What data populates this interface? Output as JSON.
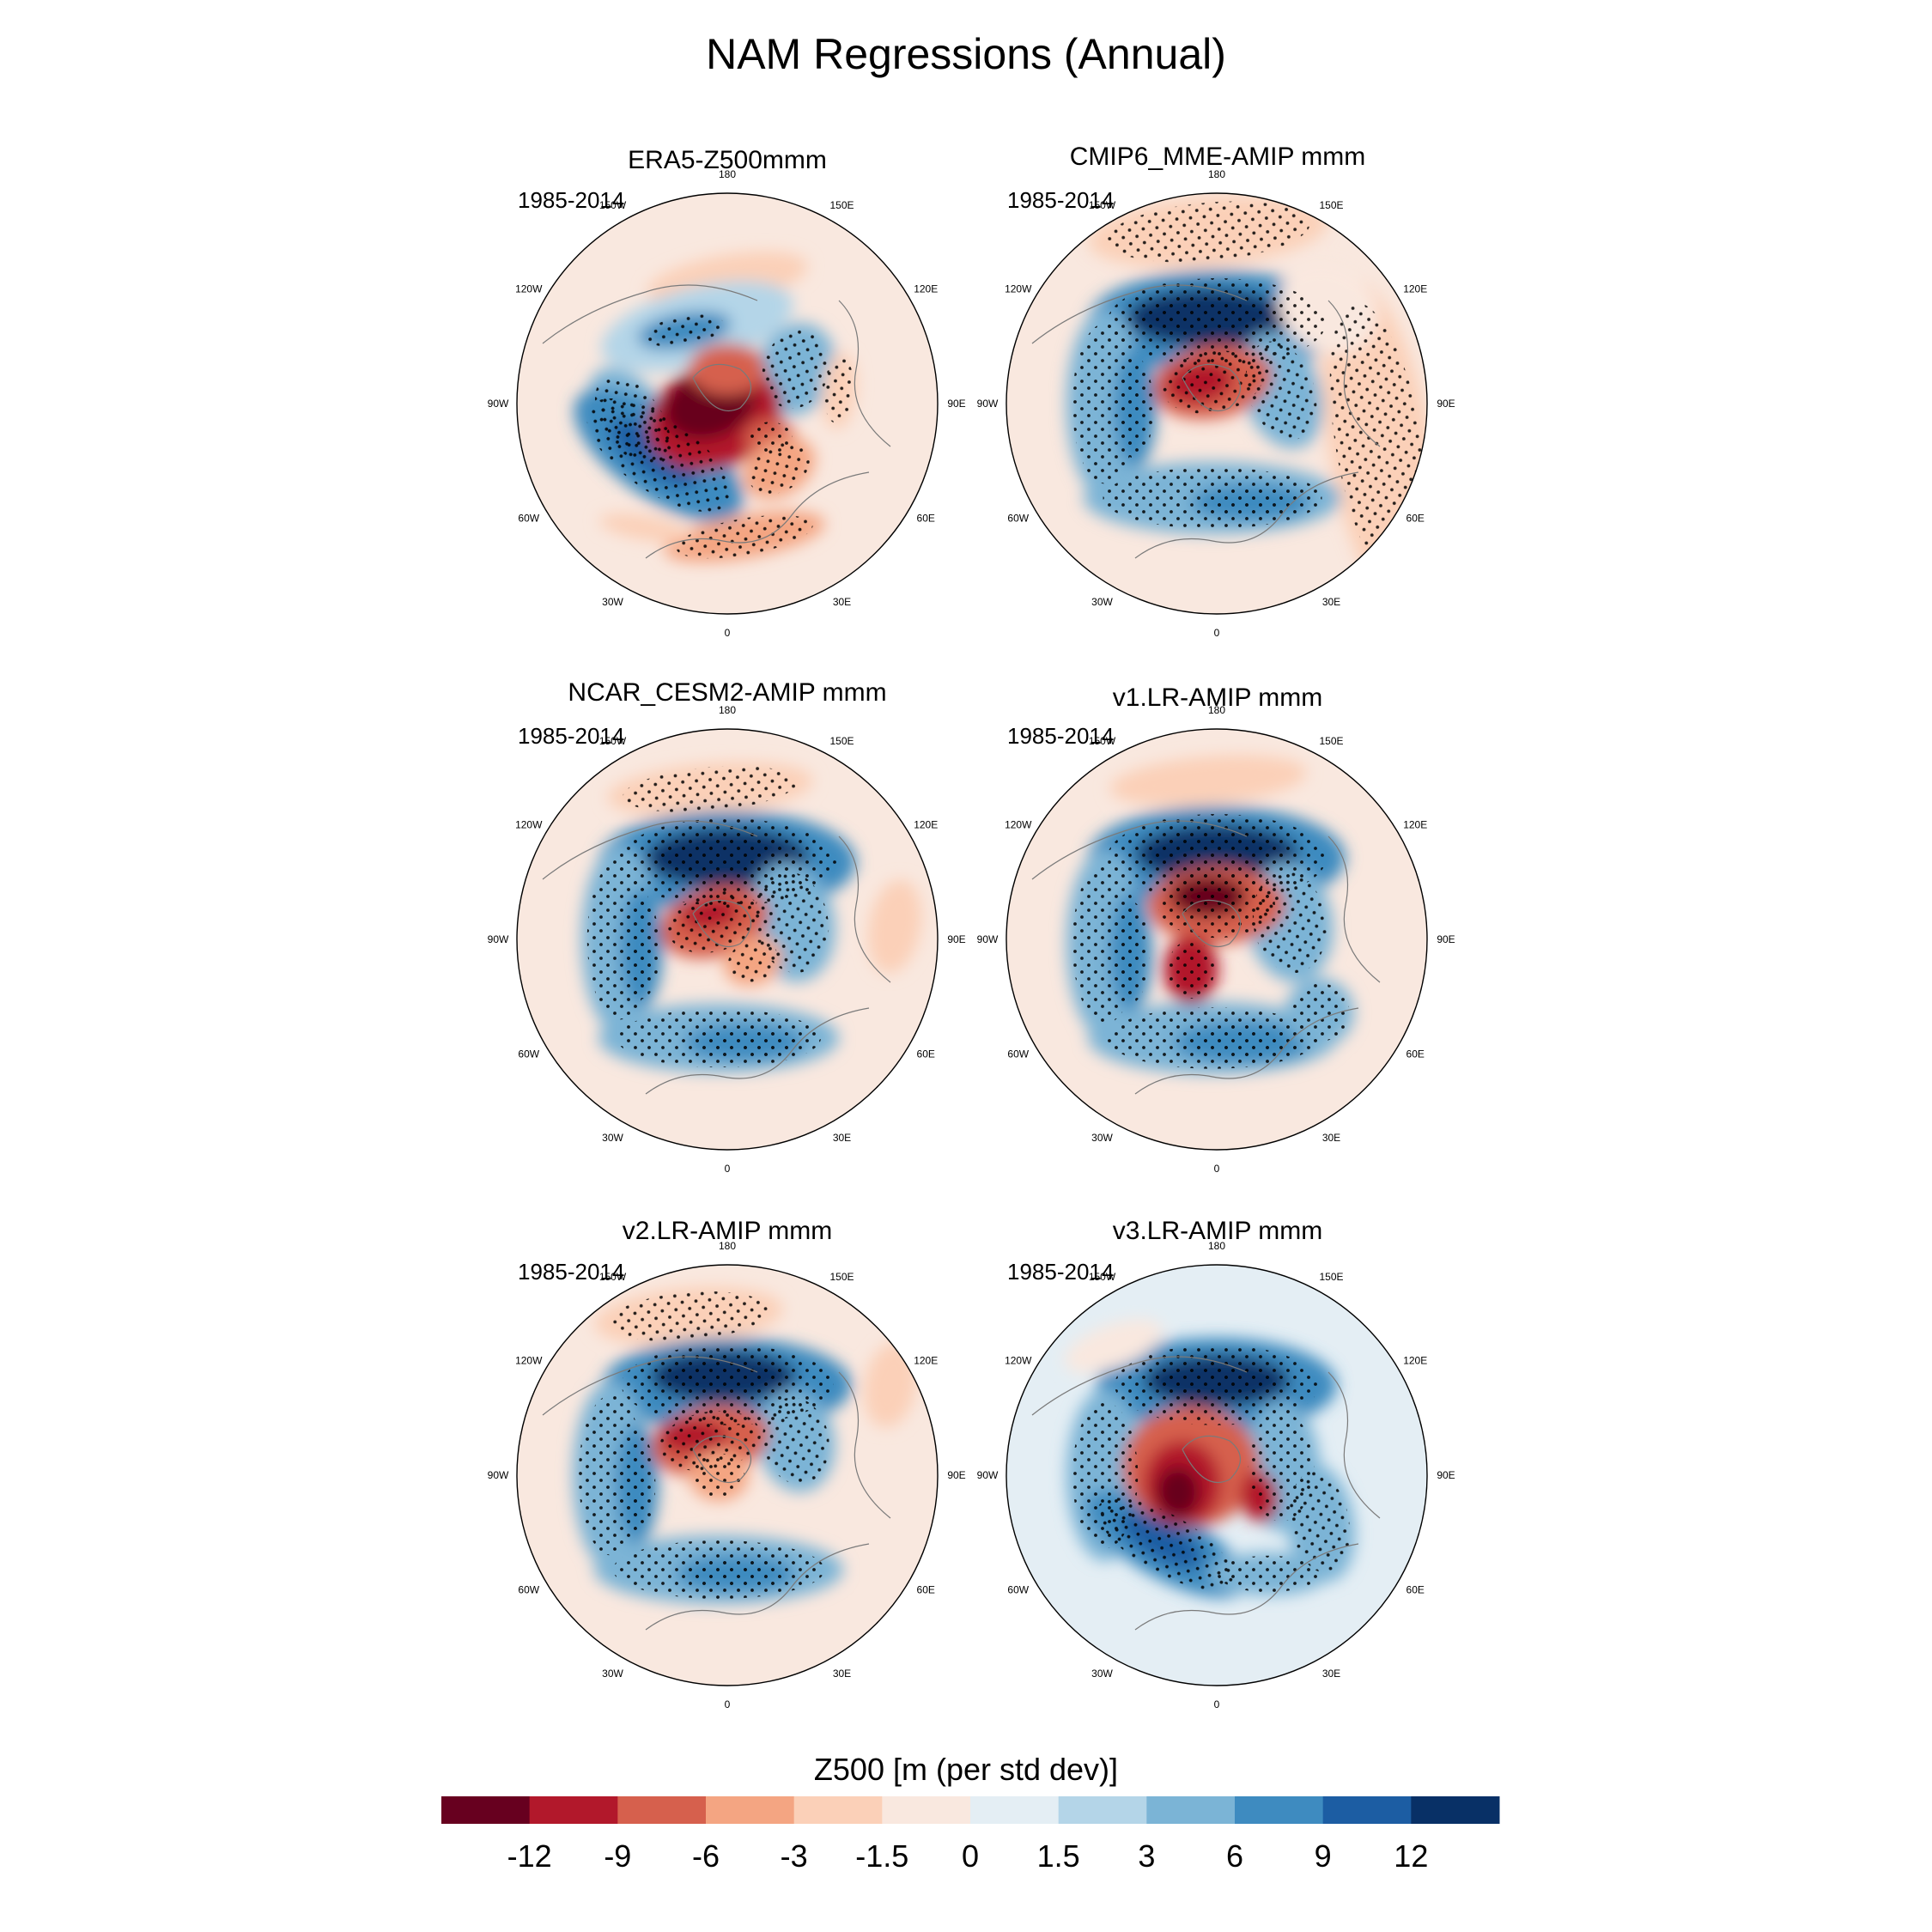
{
  "figure": {
    "title": "NAM Regressions (Annual)",
    "colorbar_label": "Z500 [m (per std dev)]"
  },
  "chart_data": {
    "type": "heatmap",
    "projection": "north polar stereographic",
    "variable": "Z500 regression on NAM index",
    "units": "m (per std dev)",
    "period": "1985-2014",
    "longitude_labels": [
      "180",
      "150E",
      "120E",
      "90E",
      "60E",
      "30E",
      "0",
      "30W",
      "60W",
      "90W",
      "120W",
      "150W"
    ],
    "colorbar": {
      "levels": [
        "-12",
        "-9",
        "-6",
        "-3",
        "-1.5",
        "0",
        "1.5",
        "3",
        "6",
        "9",
        "12"
      ],
      "colors": [
        "#67001f",
        "#b2182b",
        "#d6604d",
        "#f4a582",
        "#fbd0b8",
        "#f9e8df",
        "#e4eef4",
        "#b4d5e8",
        "#7bb4d6",
        "#3e8bc0",
        "#1c5da3",
        "#083066"
      ]
    },
    "panels": [
      {
        "title": "ERA5-Z500mmm",
        "period": "1985-2014"
      },
      {
        "title": "CMIP6_MME-AMIP  mmm",
        "period": "1985-2014"
      },
      {
        "title": "NCAR_CESM2-AMIP  mmm",
        "period": "1985-2014"
      },
      {
        "title": "v1.LR-AMIP  mmm",
        "period": "1985-2014"
      },
      {
        "title": "v2.LR-AMIP  mmm",
        "period": "1985-2014"
      },
      {
        "title": "v3.LR-AMIP  mmm",
        "period": "1985-2014"
      }
    ]
  }
}
